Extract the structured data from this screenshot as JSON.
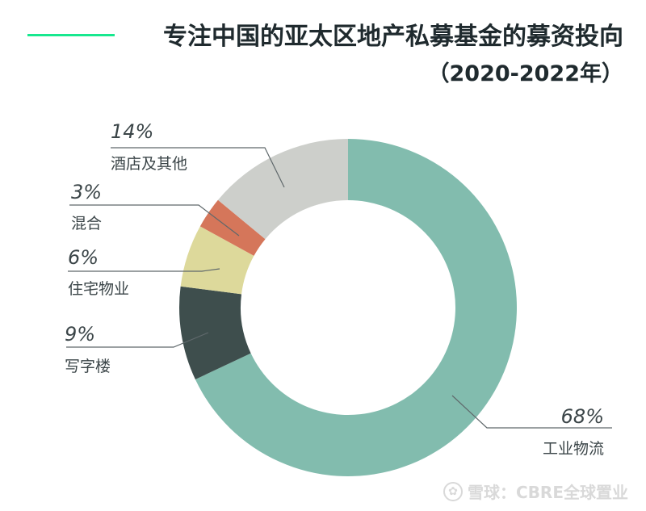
{
  "header": {
    "title": "专注中国的亚太区地产私募基金的募资投向",
    "subtitle": "（2020-2022年）",
    "accent_color": "#17e88f"
  },
  "chart_data": {
    "type": "pie",
    "donut": true,
    "title": "专注中国的亚太区地产私募基金的募资投向",
    "subtitle": "（2020-2022年）",
    "unit": "%",
    "slices": [
      {
        "label": "工业物流",
        "value": 68,
        "value_label": "68%",
        "color": "#82bcae"
      },
      {
        "label": "写字楼",
        "value": 9,
        "value_label": "9%",
        "color": "#3e4e4d"
      },
      {
        "label": "住宅物业",
        "value": 6,
        "value_label": "6%",
        "color": "#ddd99b"
      },
      {
        "label": "混合",
        "value": 3,
        "value_label": "3%",
        "color": "#d5765a"
      },
      {
        "label": "酒店及其他",
        "value": 14,
        "value_label": "14%",
        "color": "#cdcfcb"
      }
    ],
    "start": "top",
    "direction": "clockwise"
  },
  "watermark": {
    "text": "雪球：CBRE全球置业",
    "icon": "snowball-logo-icon"
  }
}
